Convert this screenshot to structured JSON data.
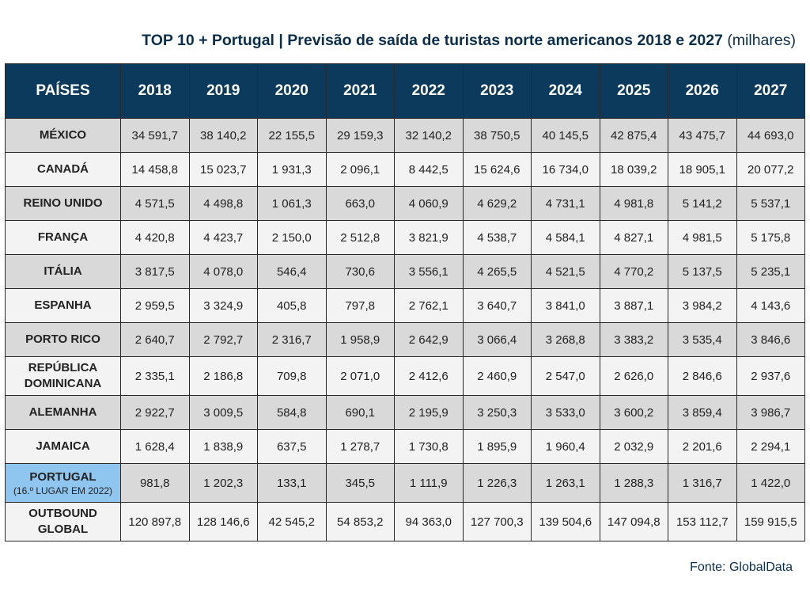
{
  "title": {
    "main": "TOP 10 + Portugal | Previsão de saída de turistas norte americanos 2018 e 2027",
    "unit": "(milhares)"
  },
  "source": "Fonte: GlobalData",
  "colors": {
    "header_bg": "#0b3a5c",
    "title_text": "#0b2e4a",
    "row_shade": "#d9d9d9",
    "row_plain": "#f3f3f3",
    "portugal_highlight": "#8ec6f0"
  },
  "chart_data": {
    "type": "table",
    "title": "TOP 10 + Portugal | Previsão de saída de turistas norte americanos 2018 e 2027 (milhares)",
    "header": [
      "PAÍSES",
      "2018",
      "2019",
      "2020",
      "2021",
      "2022",
      "2023",
      "2024",
      "2025",
      "2026",
      "2027"
    ],
    "rows": [
      {
        "country": "MÉXICO",
        "sub": "",
        "values": [
          "34 591,7",
          "38 140,2",
          "22 155,5",
          "29 159,3",
          "32 140,2",
          "38 750,5",
          "40 145,5",
          "42 875,4",
          "43 475,7",
          "44 693,0"
        ]
      },
      {
        "country": "CANADÁ",
        "sub": "",
        "values": [
          "14 458,8",
          "15 023,7",
          "1 931,3",
          "2 096,1",
          "8 442,5",
          "15 624,6",
          "16 734,0",
          "18 039,2",
          "18 905,1",
          "20 077,2"
        ]
      },
      {
        "country": "REINO UNIDO",
        "sub": "",
        "values": [
          "4 571,5",
          "4 498,8",
          "1 061,3",
          "663,0",
          "4 060,9",
          "4 629,2",
          "4 731,1",
          "4 981,8",
          "5 141,2",
          "5 537,1"
        ]
      },
      {
        "country": "FRANÇA",
        "sub": "",
        "values": [
          "4 420,8",
          "4 423,7",
          "2 150,0",
          "2 512,8",
          "3 821,9",
          "4 538,7",
          "4 584,1",
          "4 827,1",
          "4 981,5",
          "5 175,8"
        ]
      },
      {
        "country": "ITÁLIA",
        "sub": "",
        "values": [
          "3 817,5",
          "4 078,0",
          "546,4",
          "730,6",
          "3 556,1",
          "4 265,5",
          "4 521,5",
          "4 770,2",
          "5 137,5",
          "5 235,1"
        ]
      },
      {
        "country": "ESPANHA",
        "sub": "",
        "values": [
          "2 959,5",
          "3 324,9",
          "405,8",
          "797,8",
          "2 762,1",
          "3 640,7",
          "3 841,0",
          "3 887,1",
          "3 984,2",
          "4 143,6"
        ]
      },
      {
        "country": "PORTO RICO",
        "sub": "",
        "values": [
          "2 640,7",
          "2 792,7",
          "2 316,7",
          "1 958,9",
          "2 642,9",
          "3 066,4",
          "3 268,8",
          "3 383,2",
          "3 535,4",
          "3 846,6"
        ]
      },
      {
        "country": "REPÚBLICA DOMINICANA",
        "sub": "",
        "values": [
          "2 335,1",
          "2 186,8",
          "709,8",
          "2 071,0",
          "2 412,6",
          "2 460,9",
          "2 547,0",
          "2 626,0",
          "2 846,6",
          "2 937,6"
        ]
      },
      {
        "country": "ALEMANHA",
        "sub": "",
        "values": [
          "2 922,7",
          "3 009,5",
          "584,8",
          "690,1",
          "2 195,9",
          "3 250,3",
          "3 533,0",
          "3 600,2",
          "3 859,4",
          "3 986,7"
        ]
      },
      {
        "country": "JAMAICA",
        "sub": "",
        "values": [
          "1 628,4",
          "1 838,9",
          "637,5",
          "1 278,7",
          "1 730,8",
          "1 895,9",
          "1 960,4",
          "2 032,9",
          "2 201,6",
          "2 294,1"
        ]
      },
      {
        "country": "PORTUGAL",
        "sub": "(16.º LUGAR EM 2022)",
        "values": [
          "981,8",
          "1 202,3",
          "133,1",
          "345,5",
          "1 111,9",
          "1 226,3",
          "1 263,1",
          "1 288,3",
          "1 316,7",
          "1 422,0"
        ]
      },
      {
        "country": "OUTBOUND GLOBAL",
        "sub": "",
        "values": [
          "120 897,8",
          "128 146,6",
          "42 545,2",
          "54 853,2",
          "94 363,0",
          "127 700,3",
          "139 504,6",
          "147 094,8",
          "153 112,7",
          "159 915,5"
        ]
      }
    ]
  }
}
